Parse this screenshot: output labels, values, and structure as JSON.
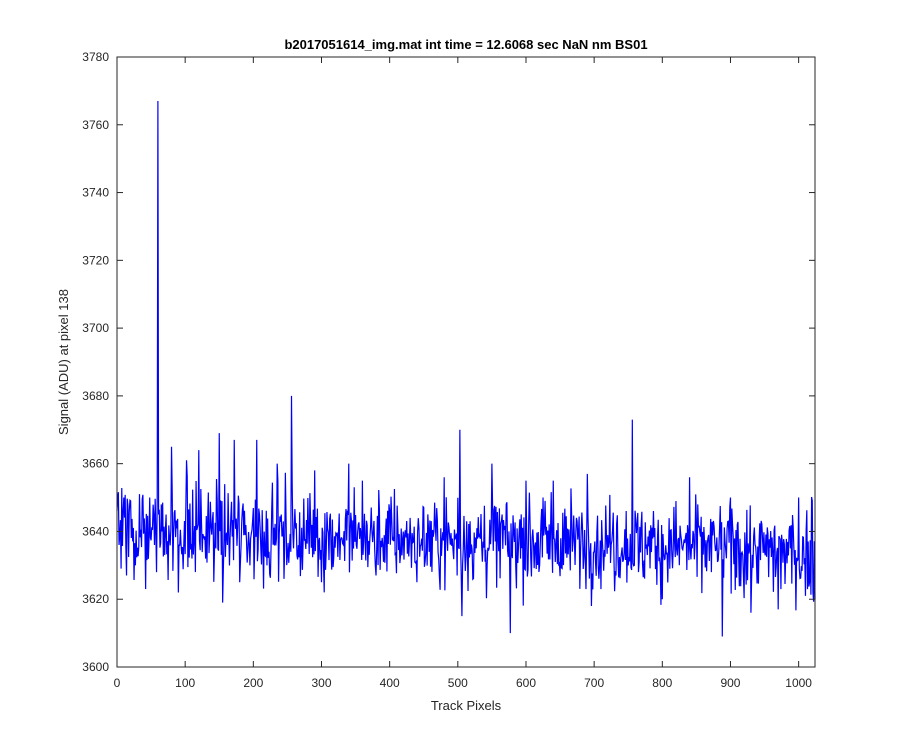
{
  "chart_data": {
    "type": "line",
    "title": "b2017051614_img.mat int time = 12.6068 sec  NaN nm BS01",
    "xlabel": "Track Pixels",
    "ylabel": "Signal (ADU) at pixel 138",
    "xlim": [
      0,
      1024
    ],
    "ylim": [
      3600,
      3780
    ],
    "xticks": [
      0,
      100,
      200,
      300,
      400,
      500,
      600,
      700,
      800,
      900,
      1000
    ],
    "yticks": [
      3600,
      3620,
      3640,
      3660,
      3680,
      3700,
      3720,
      3740,
      3760,
      3780
    ],
    "grid": false,
    "box": true,
    "line_color": "#0000ff",
    "series": [
      {
        "noise_baseline": [
          [
            0,
            3640
          ],
          [
            100,
            3640
          ],
          [
            200,
            3640
          ],
          [
            300,
            3639
          ],
          [
            400,
            3638
          ],
          [
            500,
            3637
          ],
          [
            600,
            3637
          ],
          [
            700,
            3637
          ],
          [
            800,
            3636
          ],
          [
            900,
            3635
          ],
          [
            1024,
            3633
          ]
        ],
        "points": [
          [
            0,
            3646
          ],
          [
            3,
            3636
          ],
          [
            10,
            3650
          ],
          [
            14,
            3627
          ],
          [
            20,
            3649
          ],
          [
            27,
            3630
          ],
          [
            33,
            3651
          ],
          [
            42,
            3623
          ],
          [
            48,
            3650
          ],
          [
            55,
            3636
          ],
          [
            59,
            3650
          ],
          [
            60,
            3767
          ],
          [
            61,
            3645
          ],
          [
            66,
            3640
          ],
          [
            72,
            3645
          ],
          [
            80,
            3665
          ],
          [
            90,
            3622
          ],
          [
            102,
            3661
          ],
          [
            110,
            3632
          ],
          [
            120,
            3664
          ],
          [
            130,
            3632
          ],
          [
            145,
            3635
          ],
          [
            150,
            3669
          ],
          [
            155,
            3619
          ],
          [
            162,
            3636
          ],
          [
            172,
            3667
          ],
          [
            180,
            3625
          ],
          [
            195,
            3630
          ],
          [
            205,
            3667
          ],
          [
            220,
            3630
          ],
          [
            235,
            3660
          ],
          [
            245,
            3626
          ],
          [
            253,
            3635
          ],
          [
            256,
            3680
          ],
          [
            259,
            3635
          ],
          [
            270,
            3633
          ],
          [
            290,
            3658
          ],
          [
            300,
            3625
          ],
          [
            340,
            3660
          ],
          [
            360,
            3655
          ],
          [
            380,
            3627
          ],
          [
            440,
            3625
          ],
          [
            480,
            3656
          ],
          [
            503,
            3670
          ],
          [
            506,
            3615
          ],
          [
            513,
            3643
          ],
          [
            518,
            3643
          ],
          [
            527,
            3635
          ],
          [
            550,
            3660
          ],
          [
            565,
            3645
          ],
          [
            577,
            3610
          ],
          [
            590,
            3640
          ],
          [
            600,
            3655
          ],
          [
            640,
            3655
          ],
          [
            690,
            3657
          ],
          [
            710,
            3623
          ],
          [
            756,
            3673
          ],
          [
            759,
            3630
          ],
          [
            765,
            3628
          ],
          [
            800,
            3620
          ],
          [
            840,
            3656
          ],
          [
            888,
            3609
          ],
          [
            892,
            3637
          ],
          [
            900,
            3650
          ],
          [
            930,
            3616
          ],
          [
            970,
            3617
          ],
          [
            1000,
            3650
          ],
          [
            1010,
            3621
          ],
          [
            1020,
            3649
          ],
          [
            1024,
            3620
          ]
        ]
      }
    ]
  }
}
